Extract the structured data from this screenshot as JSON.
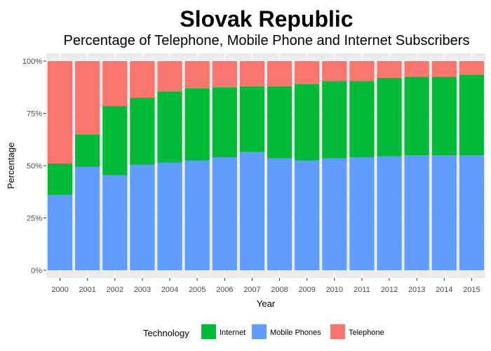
{
  "chart_data": {
    "type": "bar",
    "stacked": true,
    "title": "Slovak Republic",
    "subtitle": "Percentage of Telephone, Mobile Phone and Internet Subscribers",
    "xlabel": "Year",
    "ylabel": "Percentage",
    "ylim": [
      0,
      100
    ],
    "y_ticks": [
      "0%",
      "25%",
      "50%",
      "75%",
      "100%"
    ],
    "y_tick_values": [
      0,
      25,
      50,
      75,
      100
    ],
    "grid": true,
    "legend_position": "bottom",
    "legend_title": "Technology",
    "categories": [
      "2000",
      "2001",
      "2002",
      "2003",
      "2004",
      "2005",
      "2006",
      "2007",
      "2008",
      "2009",
      "2010",
      "2011",
      "2012",
      "2013",
      "2014",
      "2015"
    ],
    "stack_order_bottom_to_top": [
      "Mobile Phones",
      "Internet",
      "Telephone"
    ],
    "series": [
      {
        "name": "Internet",
        "color": "#00BA38",
        "values": [
          15,
          15.5,
          33,
          32,
          34,
          34.5,
          33.5,
          31.5,
          34.5,
          36.5,
          37,
          36.5,
          37.5,
          37.5,
          37.5,
          38.5
        ]
      },
      {
        "name": "Mobile Phones",
        "color": "#619CFF",
        "values": [
          36,
          49.5,
          45.5,
          50.5,
          51.5,
          52.5,
          54,
          56.5,
          53.5,
          52.5,
          53.5,
          54,
          54.5,
          55,
          55,
          55
        ]
      },
      {
        "name": "Telephone",
        "color": "#F8766D",
        "values": [
          49,
          35,
          21.5,
          17.5,
          14.5,
          13,
          12.5,
          12,
          12,
          11,
          9.5,
          9.5,
          8,
          7.5,
          7.5,
          6.5
        ]
      }
    ]
  }
}
